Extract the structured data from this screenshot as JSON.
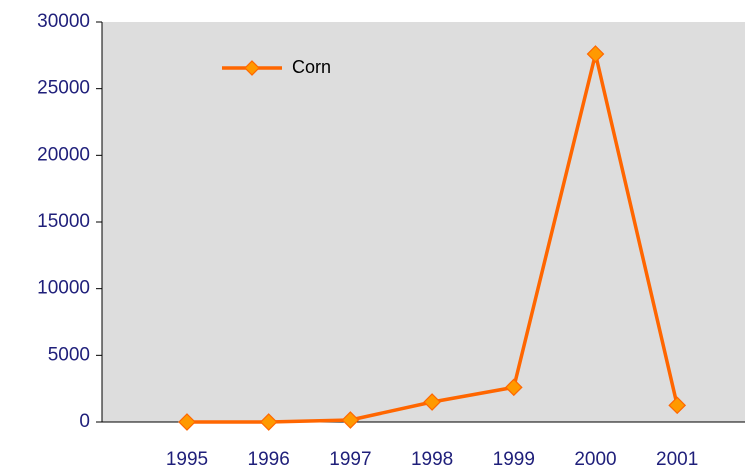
{
  "chart_data": {
    "type": "line",
    "categories": [
      "1995",
      "1996",
      "1997",
      "1998",
      "1999",
      "2000",
      "2001"
    ],
    "series": [
      {
        "name": "Corn",
        "color": "#ff6600",
        "marker_color": "#ff9900",
        "values": [
          0,
          0,
          150,
          1500,
          2600,
          27600,
          1250
        ]
      }
    ],
    "ylim": [
      0,
      30000
    ],
    "yticks": [
      0,
      5000,
      10000,
      15000,
      20000,
      25000,
      30000
    ],
    "legend": "upper left",
    "plot_background": "#dddddd"
  }
}
